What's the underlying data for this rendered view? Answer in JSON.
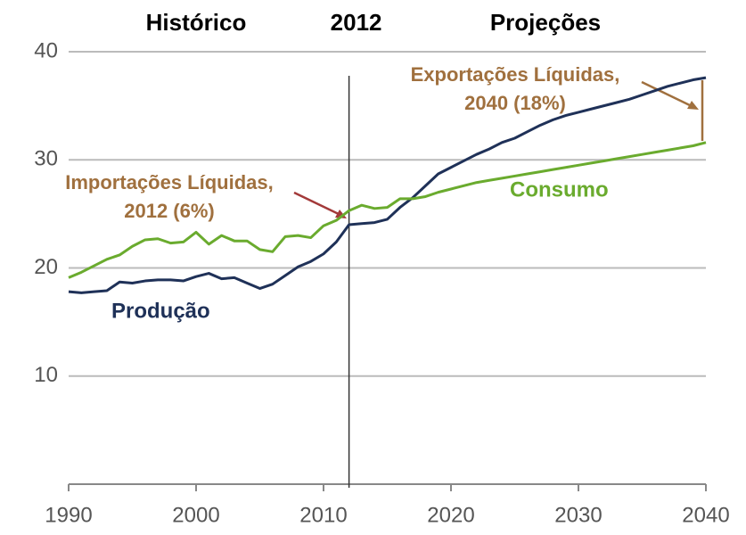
{
  "chart_data": {
    "type": "line",
    "headers": [
      "Histórico",
      "Projeções"
    ],
    "divider": {
      "x": 2012
    },
    "x": [
      1990,
      1991,
      1992,
      1993,
      1994,
      1995,
      1996,
      1997,
      1998,
      1999,
      2000,
      2001,
      2002,
      2003,
      2004,
      2005,
      2006,
      2007,
      2008,
      2009,
      2010,
      2011,
      2012,
      2013,
      2014,
      2015,
      2016,
      2017,
      2018,
      2019,
      2020,
      2021,
      2022,
      2023,
      2024,
      2025,
      2026,
      2027,
      2028,
      2029,
      2030,
      2031,
      2032,
      2033,
      2034,
      2035,
      2036,
      2037,
      2038,
      2039,
      2040
    ],
    "series": [
      {
        "name": "Produção",
        "color": "#1f3158",
        "values": [
          17.8,
          17.7,
          17.8,
          17.9,
          18.7,
          18.6,
          18.8,
          18.9,
          18.9,
          18.8,
          19.2,
          19.5,
          19.0,
          19.1,
          18.6,
          18.1,
          18.5,
          19.3,
          20.1,
          20.6,
          21.3,
          22.4,
          24.0,
          24.1,
          24.2,
          24.5,
          25.6,
          26.5,
          27.6,
          28.7,
          29.3,
          29.9,
          30.5,
          31.0,
          31.6,
          32.0,
          32.6,
          33.2,
          33.7,
          34.1,
          34.4,
          34.7,
          35.0,
          35.3,
          35.6,
          36.0,
          36.4,
          36.8,
          37.1,
          37.4,
          37.6
        ]
      },
      {
        "name": "Consumo",
        "color": "#6aab2e",
        "values": [
          19.1,
          19.6,
          20.2,
          20.8,
          21.2,
          22.0,
          22.6,
          22.7,
          22.3,
          22.4,
          23.3,
          22.2,
          23.0,
          22.5,
          22.5,
          21.7,
          21.5,
          22.9,
          23.0,
          22.8,
          23.9,
          24.4,
          25.3,
          25.8,
          25.5,
          25.6,
          26.4,
          26.4,
          26.6,
          27.0,
          27.3,
          27.6,
          27.9,
          28.1,
          28.3,
          28.5,
          28.7,
          28.9,
          29.1,
          29.3,
          29.5,
          29.7,
          29.9,
          30.1,
          30.3,
          30.5,
          30.7,
          30.9,
          31.1,
          31.3,
          31.6
        ]
      }
    ],
    "annotations": [
      {
        "lines": [
          "Importações Líquidas,",
          "2012 (6%)"
        ],
        "color": "#a0703e"
      },
      {
        "lines": [
          "Exportações Líquidas,",
          "2040 (18%)"
        ],
        "color": "#a0703e"
      }
    ],
    "xlim": [
      1990,
      2040
    ],
    "xticks": [
      1990,
      2000,
      2010,
      2020,
      2030,
      2040
    ],
    "ylim": [
      0,
      40
    ],
    "yticks": [
      10,
      20,
      30,
      40
    ],
    "grid": true
  }
}
